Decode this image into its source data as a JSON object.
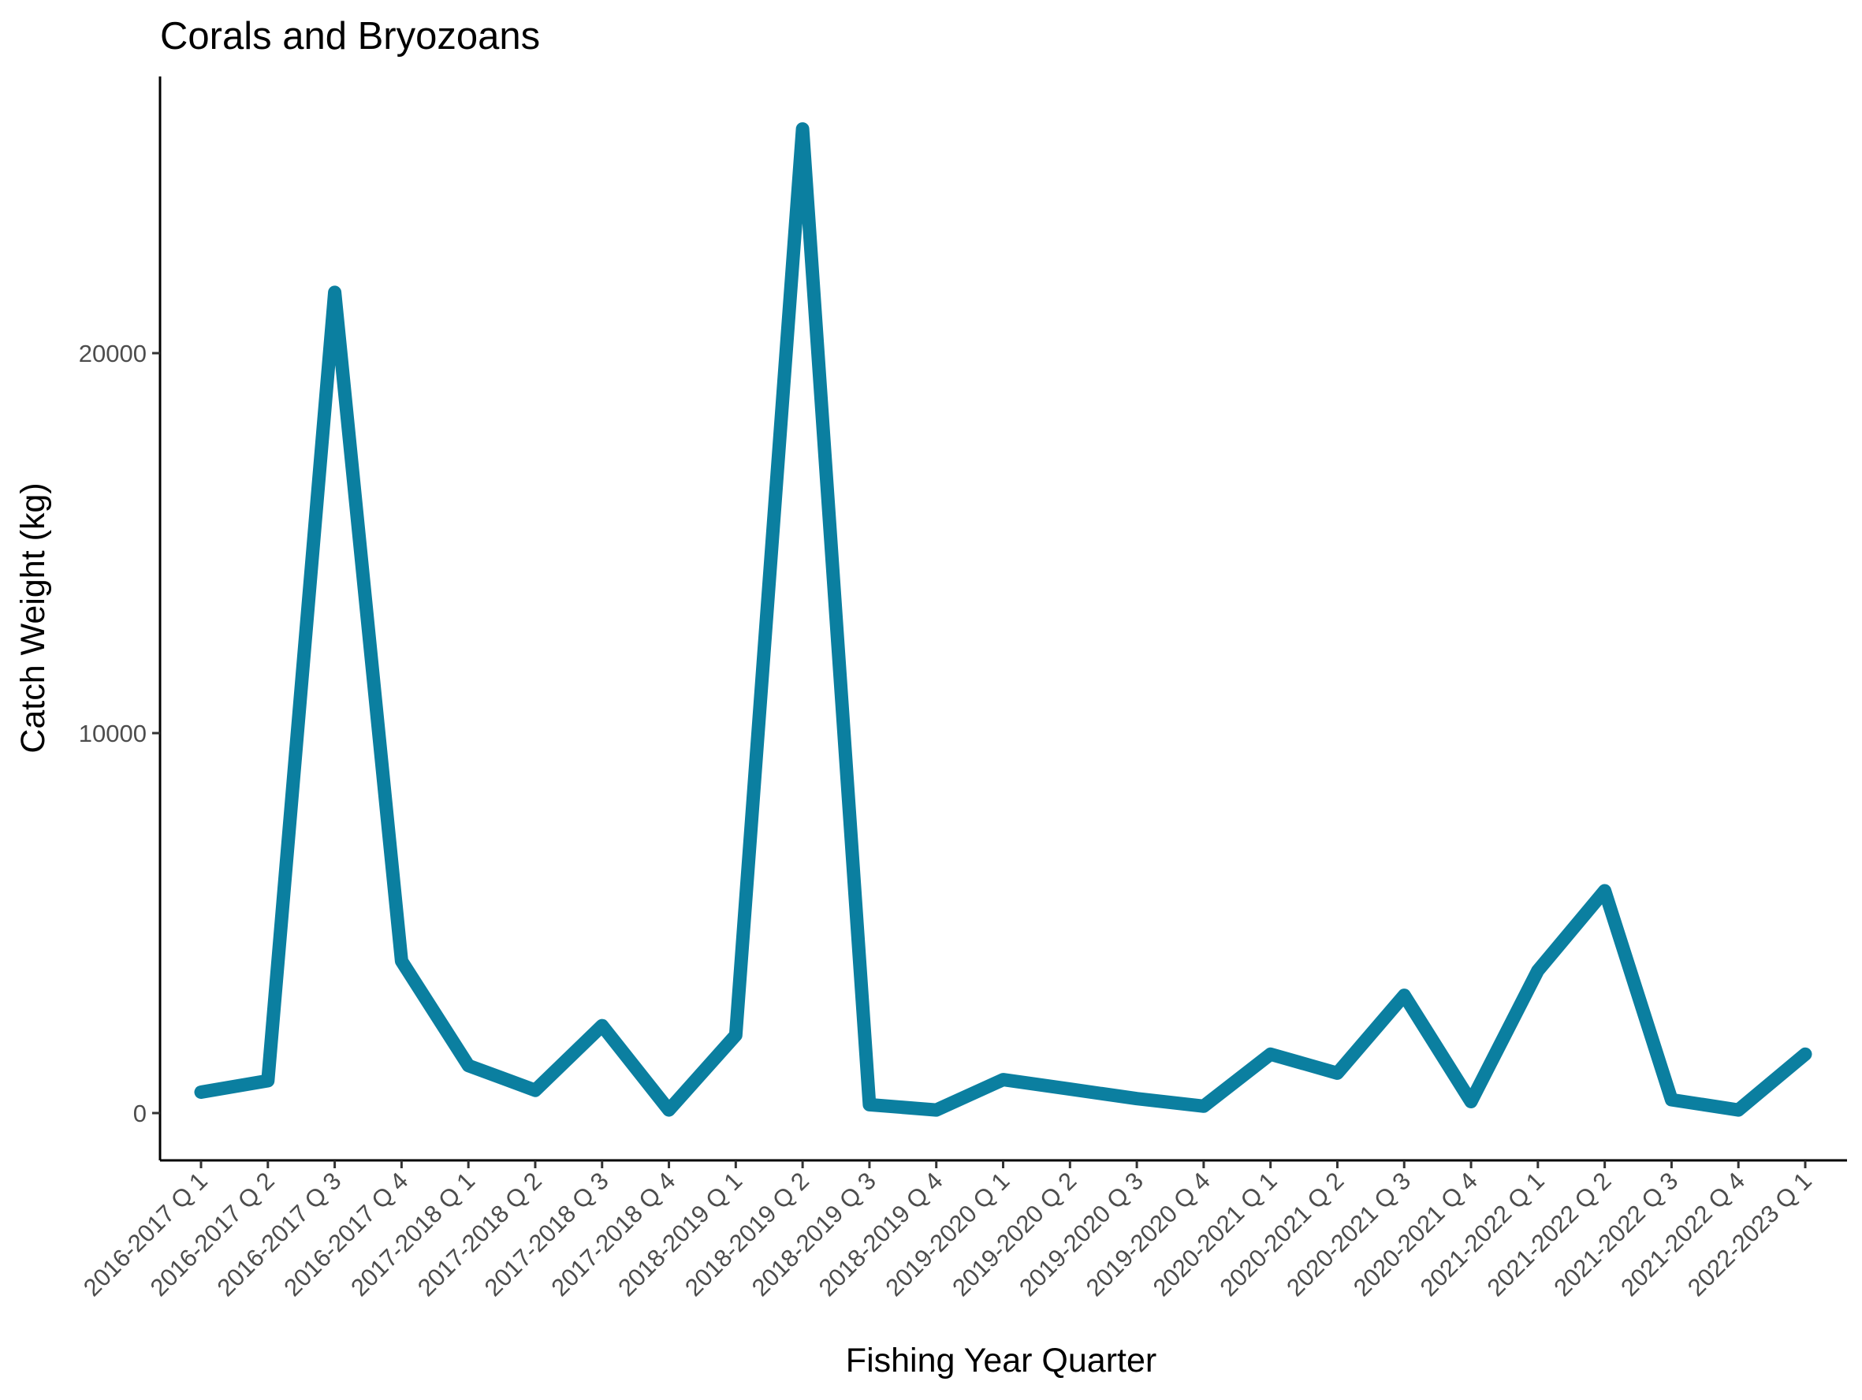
{
  "chart_data": {
    "type": "line",
    "title": "Corals and Bryozoans",
    "xlabel": "Fishing Year Quarter",
    "ylabel": "Catch Weight (kg)",
    "categories": [
      "2016-2017 Q 1",
      "2016-2017 Q 2",
      "2016-2017 Q 3",
      "2016-2017 Q 4",
      "2017-2018 Q 1",
      "2017-2018 Q 2",
      "2017-2018 Q 3",
      "2017-2018 Q 4",
      "2018-2019 Q 1",
      "2018-2019 Q 2",
      "2018-2019 Q 3",
      "2018-2019 Q 4",
      "2019-2020 Q 1",
      "2019-2020 Q 2",
      "2019-2020 Q 3",
      "2019-2020 Q 4",
      "2020-2021 Q 1",
      "2020-2021 Q 2",
      "2020-2021 Q 3",
      "2020-2021 Q 4",
      "2021-2022 Q 1",
      "2021-2022 Q 2",
      "2021-2022 Q 3",
      "2021-2022 Q 4",
      "2022-2023 Q 1"
    ],
    "series": [
      {
        "values": [
          550,
          850,
          21600,
          4000,
          1250,
          600,
          2300,
          80,
          2050,
          25900,
          220,
          80,
          880,
          630,
          380,
          180,
          1550,
          1050,
          3100,
          300,
          3750,
          5850,
          350,
          80,
          1550
        ],
        "color": "#0b7fa0"
      }
    ],
    "yticks": [
      0,
      10000,
      20000
    ],
    "ylim": [
      -1200,
      27200
    ],
    "grid": false,
    "legend": "none"
  }
}
